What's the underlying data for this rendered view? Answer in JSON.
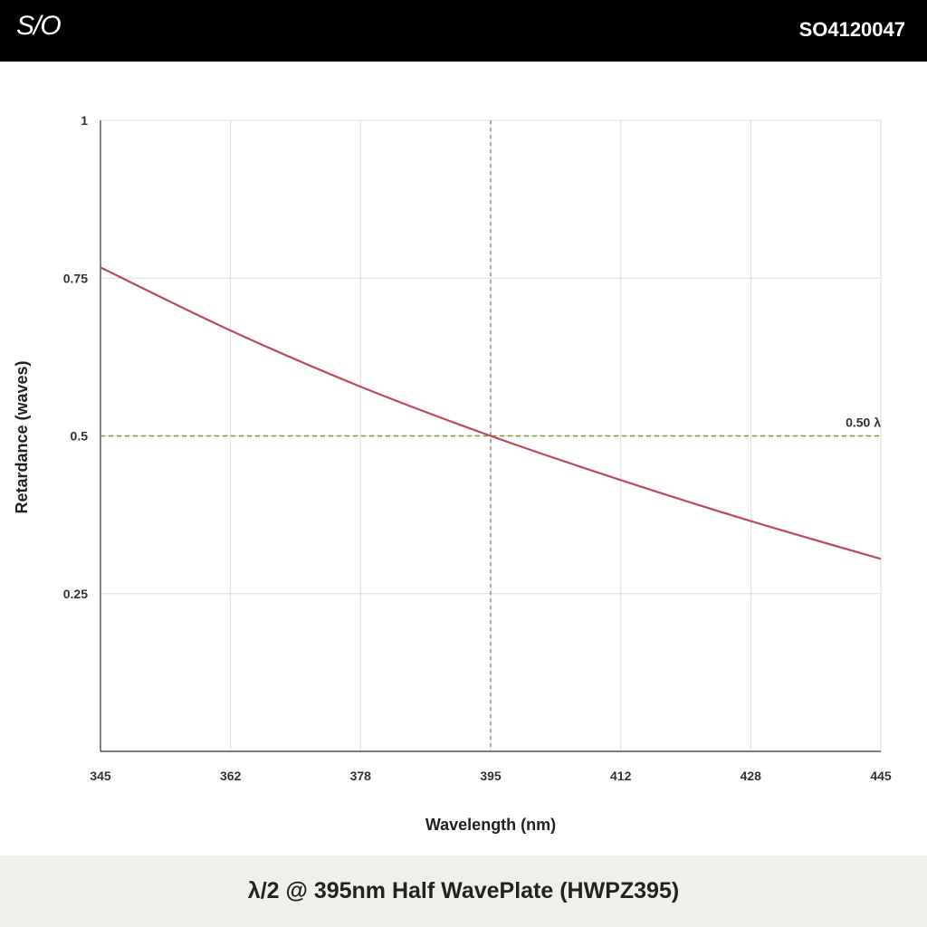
{
  "header": {
    "logo_text": "S/O",
    "part_number": "SO4120047"
  },
  "footer": {
    "title": "λ/2 @ 395nm Half WavePlate (HWPZ395)"
  },
  "colors": {
    "curve": "#c0485a",
    "reference_line": "#7a9a2a",
    "design_line": "#666666",
    "grid": "#dddddd",
    "axis": "#333333"
  },
  "chart_data": {
    "type": "line",
    "xlabel": "Wavelength (nm)",
    "ylabel": "Retardance (waves)",
    "xlim": [
      345,
      445
    ],
    "ylim": [
      0,
      1
    ],
    "x_ticks": [
      "345",
      "362",
      "378",
      "395",
      "412",
      "428",
      "445"
    ],
    "x_tick_values": [
      345,
      361.67,
      378.33,
      395,
      411.67,
      428.33,
      445
    ],
    "y_ticks": [
      "0.25",
      "0.5",
      "0.75",
      "1"
    ],
    "y_tick_values": [
      0.25,
      0.5,
      0.75,
      1
    ],
    "grid": true,
    "series": [
      {
        "x": [
          345,
          361.67,
          378.33,
          395,
          411.67,
          428.33,
          445
        ],
        "y": [
          0.767,
          0.667,
          0.578,
          0.5,
          0.43,
          0.365,
          0.305
        ]
      }
    ],
    "reference_line": {
      "y": 0.5,
      "label": "0.50 λ"
    },
    "design_wavelength": 395
  }
}
